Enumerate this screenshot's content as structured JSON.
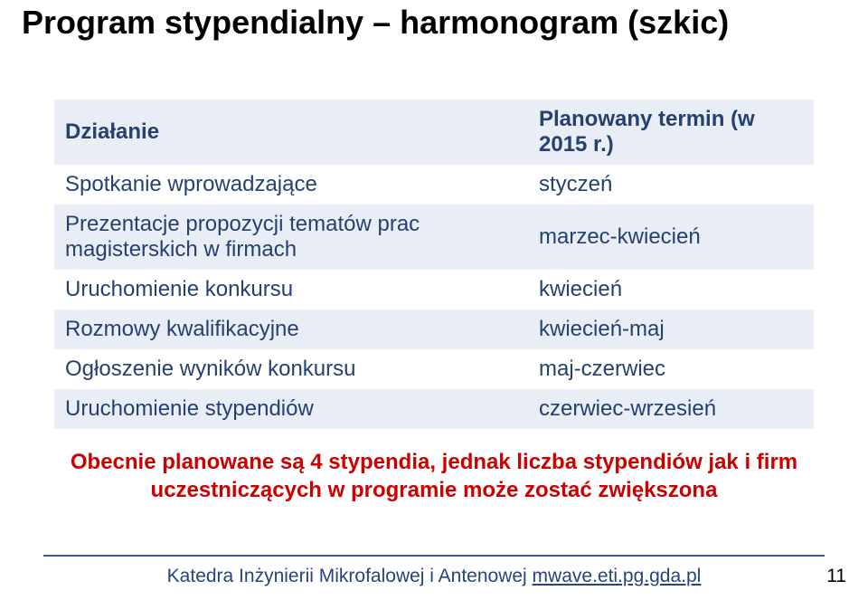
{
  "title": "Program stypendialny – harmonogram (szkic)",
  "table": {
    "header": {
      "left": "Działanie",
      "right": "Planowany termin (w 2015 r.)"
    },
    "rows": [
      {
        "left": "Spotkanie wprowadzające",
        "right": "styczeń"
      },
      {
        "left": "Prezentacje propozycji tematów prac magisterskich w firmach",
        "right": "marzec-kwiecień"
      },
      {
        "left": "Uruchomienie konkursu",
        "right": "kwiecień"
      },
      {
        "left": "Rozmowy kwalifikacyjne",
        "right": "kwiecień-maj"
      },
      {
        "left": "Ogłoszenie wyników konkursu",
        "right": "maj-czerwiec"
      },
      {
        "left": "Uruchomienie stypendiów",
        "right": "czerwiec-wrzesień"
      }
    ],
    "styles": {
      "header_bg": "#e9edf5",
      "band_bg": "#e9edf5",
      "text_color": "#25416f",
      "font_size": 24
    }
  },
  "midnote": "Obecnie planowane są 4 stypendia, jednak liczba stypendiów jak i firm uczestniczących w programie może zostać zwiększona",
  "footer": {
    "dept": "Katedra Inżynierii Mikrofalowej i Antenowej ",
    "link": "mwave.eti.pg.gda.pl"
  },
  "page_number": "11"
}
